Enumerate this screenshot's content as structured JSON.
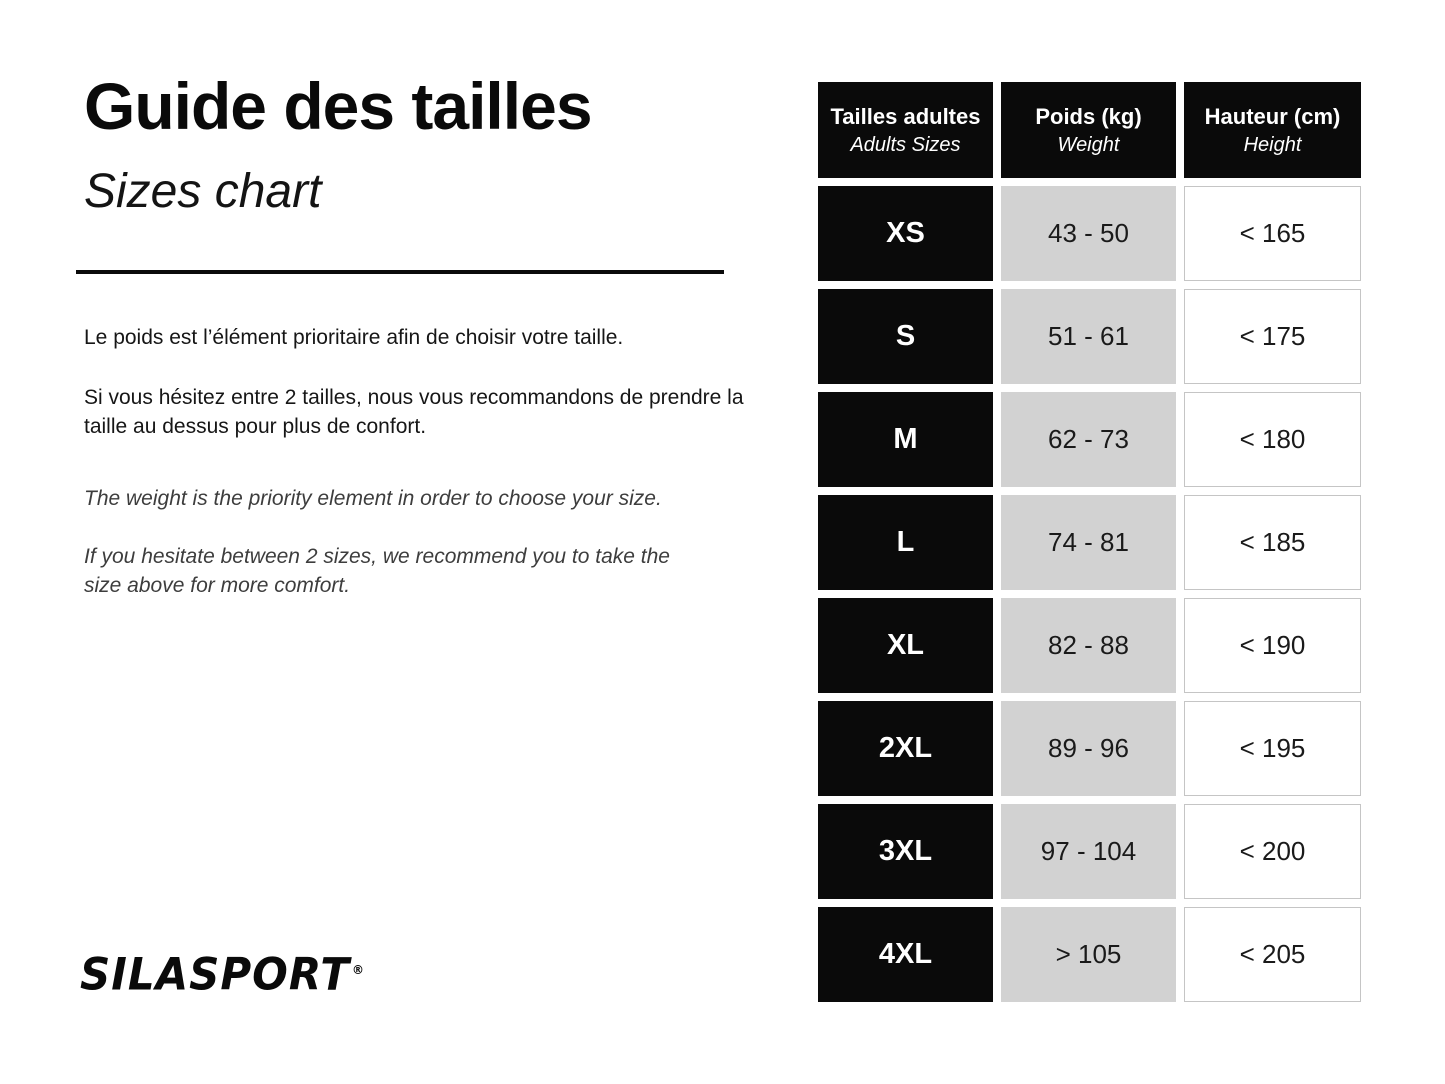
{
  "page": {
    "title": "Guide des tailles",
    "subtitle": "Sizes chart"
  },
  "intro": {
    "fr_line1": "Le poids est l’élément prioritaire afin de choisir votre taille.",
    "fr_line2": "Si vous hésitez entre 2 tailles, nous vous recommandons de prendre la taille au dessus pour plus de confort.",
    "en_line1": "The weight is the priority element in order to choose your size.",
    "en_line2": "If you hesitate between 2 sizes, we recommend you to take the size above for more comfort."
  },
  "brand": {
    "name": "SILASPORT",
    "mark": "®"
  },
  "size_table": {
    "headers": {
      "sizes_fr": "Tailles adultes",
      "sizes_en": "Adults Sizes",
      "weight_fr": "Poids (kg)",
      "weight_en": "Weight",
      "height_fr": "Hauteur (cm)",
      "height_en": "Height"
    },
    "rows": [
      {
        "size": "XS",
        "weight": "43 - 50",
        "height": "< 165"
      },
      {
        "size": "S",
        "weight": "51 - 61",
        "height": "< 175"
      },
      {
        "size": "M",
        "weight": "62 - 73",
        "height": "< 180"
      },
      {
        "size": "L",
        "weight": "74 - 81",
        "height": "< 185"
      },
      {
        "size": "XL",
        "weight": "82 - 88",
        "height": "< 190"
      },
      {
        "size": "2XL",
        "weight": "89 - 96",
        "height": "< 195"
      },
      {
        "size": "3XL",
        "weight": "97 - 104",
        "height": "< 200"
      },
      {
        "size": "4XL",
        "weight": "> 105",
        "height": "< 205"
      }
    ]
  },
  "colors": {
    "cell_black": "#0a0a0a",
    "cell_gray": "#d2d2d2",
    "cell_border": "#c5c5c5",
    "text_dark": "#1a1a1a"
  }
}
